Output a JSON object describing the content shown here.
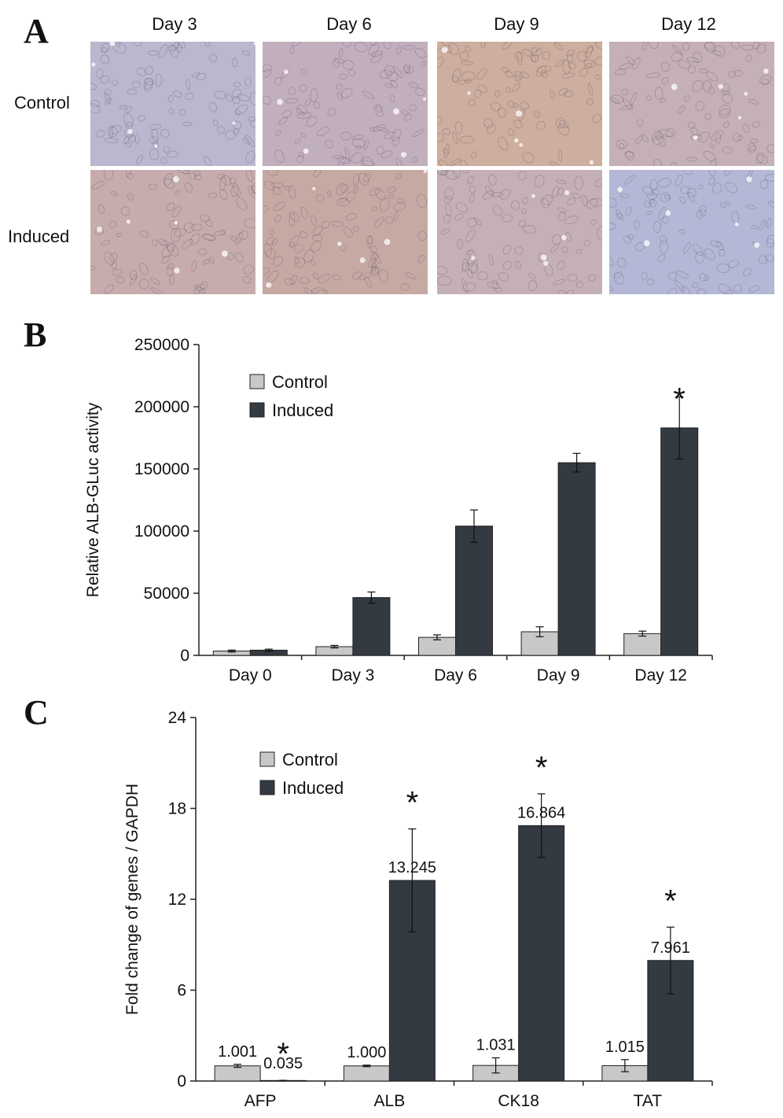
{
  "panel_a": {
    "letter": "A",
    "columns": [
      "Day 3",
      "Day 6",
      "Day 9",
      "Day 12"
    ],
    "rows": [
      "Control",
      "Induced"
    ],
    "tints": [
      [
        "#b9b8cf",
        "#c2afbd",
        "#cdae9f",
        "#c5b0b5"
      ],
      [
        "#c6acac",
        "#c7a9a4",
        "#c6b0b7",
        "#b4b8d6"
      ]
    ]
  },
  "panel_b": {
    "letter": "B"
  },
  "panel_c": {
    "letter": "C"
  },
  "colors": {
    "control": "#c8c8c8",
    "induced": "#333a42"
  },
  "chart_data": [
    {
      "type": "bar",
      "panel": "B",
      "ylabel": "Relative ALB-GLuc activity",
      "ylim": [
        0,
        250000
      ],
      "yticks": [
        "0",
        "50000",
        "100000",
        "150000",
        "200000",
        "250000"
      ],
      "categories": [
        "Day 0",
        "Day 3",
        "Day 6",
        "Day 9",
        "Day 12"
      ],
      "series": [
        {
          "name": "Control",
          "values": [
            3500,
            7000,
            14500,
            19000,
            17500
          ],
          "errors": [
            800,
            1000,
            2000,
            4000,
            2000
          ]
        },
        {
          "name": "Induced",
          "values": [
            4200,
            46500,
            104000,
            155000,
            183000
          ],
          "errors": [
            800,
            4500,
            13000,
            7500,
            25000
          ]
        }
      ],
      "significance": [
        "",
        "",
        "",
        "",
        "*"
      ],
      "legend": "top-left"
    },
    {
      "type": "bar",
      "panel": "C",
      "ylabel": "Fold change of genes / GAPDH",
      "ylim": [
        0,
        24
      ],
      "yticks": [
        "0",
        "6",
        "12",
        "18",
        "24"
      ],
      "categories": [
        "AFP",
        "ALB",
        "CK18",
        "TAT"
      ],
      "series": [
        {
          "name": "Control",
          "values": [
            1.001,
            1.0,
            1.031,
            1.015
          ],
          "labels": [
            "1.001",
            "1.000",
            "1.031",
            "1.015"
          ],
          "errors": [
            0.1,
            0.05,
            0.5,
            0.4
          ]
        },
        {
          "name": "Induced",
          "values": [
            0.035,
            13.245,
            16.864,
            7.961
          ],
          "labels": [
            "0.035",
            "13.245",
            "16.864",
            "7.961"
          ],
          "errors": [
            0.01,
            3.4,
            2.1,
            2.2
          ]
        }
      ],
      "significance": [
        "*",
        "*",
        "*",
        "*"
      ],
      "legend": "top-left"
    }
  ]
}
